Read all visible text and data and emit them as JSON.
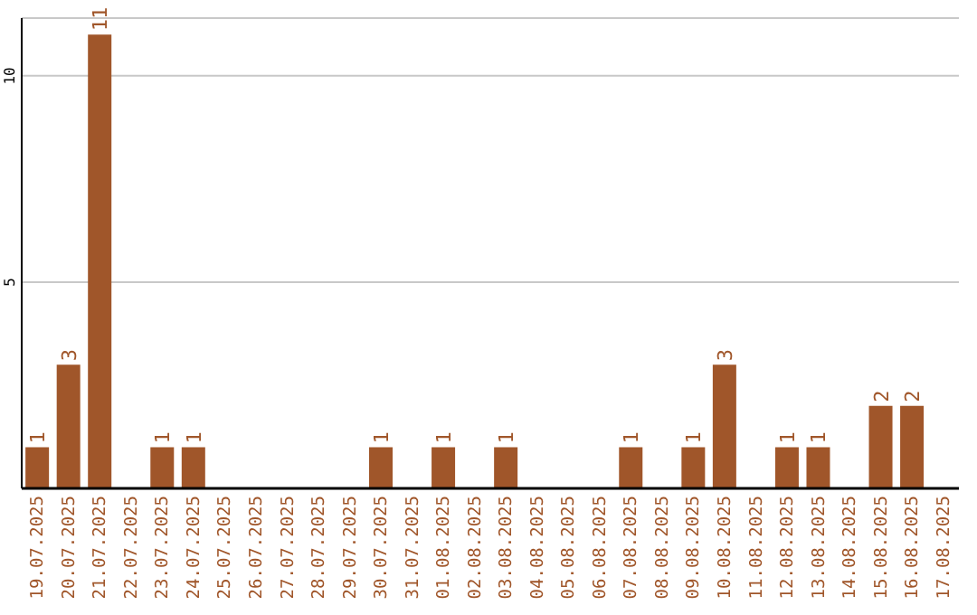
{
  "chart_data": {
    "type": "bar",
    "categories": [
      "19.07.2025",
      "20.07.2025",
      "21.07.2025",
      "22.07.2025",
      "23.07.2025",
      "24.07.2025",
      "25.07.2025",
      "26.07.2025",
      "27.07.2025",
      "28.07.2025",
      "29.07.2025",
      "30.07.2025",
      "31.07.2025",
      "01.08.2025",
      "02.08.2025",
      "03.08.2025",
      "04.08.2025",
      "05.08.2025",
      "06.08.2025",
      "07.08.2025",
      "08.08.2025",
      "09.08.2025",
      "10.08.2025",
      "11.08.2025",
      "12.08.2025",
      "13.08.2025",
      "14.08.2025",
      "15.08.2025",
      "16.08.2025",
      "17.08.2025"
    ],
    "values": [
      1,
      3,
      11,
      0,
      1,
      1,
      0,
      0,
      0,
      0,
      0,
      1,
      0,
      1,
      0,
      1,
      0,
      0,
      0,
      1,
      0,
      1,
      3,
      0,
      1,
      1,
      0,
      2,
      2,
      0
    ],
    "value_labels": [
      "1",
      "3",
      "11",
      null,
      "1",
      "1",
      null,
      null,
      null,
      null,
      null,
      "1",
      null,
      "1",
      null,
      "1",
      null,
      null,
      null,
      "1",
      null,
      "1",
      "3",
      null,
      "1",
      "1",
      null,
      "2",
      "2",
      null
    ],
    "color": "#a0562a",
    "ylim": [
      0,
      11.4
    ],
    "yticks": [
      5,
      10
    ],
    "grid": "y"
  }
}
